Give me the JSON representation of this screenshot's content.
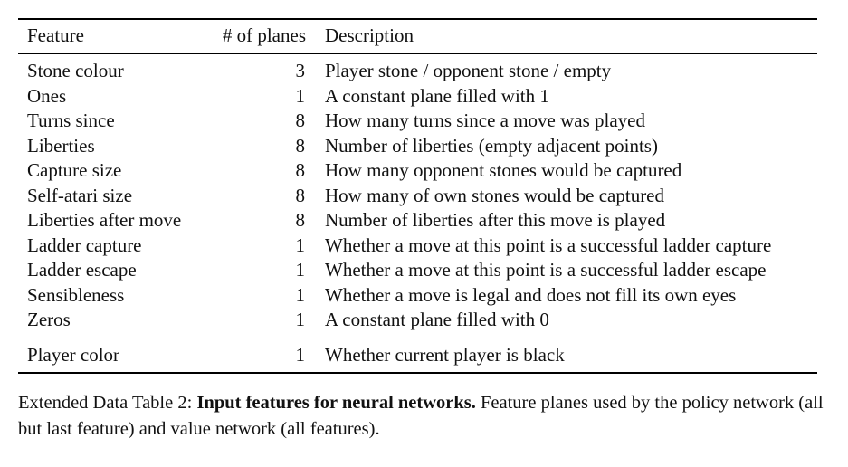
{
  "table": {
    "headers": {
      "feature": "Feature",
      "planes": "# of planes",
      "description": "Description"
    },
    "rows": [
      {
        "feature": "Stone colour",
        "planes": "3",
        "description": "Player stone / opponent stone / empty"
      },
      {
        "feature": "Ones",
        "planes": "1",
        "description": "A constant plane filled with 1"
      },
      {
        "feature": "Turns since",
        "planes": "8",
        "description": "How many turns since a move was played"
      },
      {
        "feature": "Liberties",
        "planes": "8",
        "description": "Number of liberties (empty adjacent points)"
      },
      {
        "feature": "Capture size",
        "planes": "8",
        "description": "How many opponent stones would be captured"
      },
      {
        "feature": "Self-atari size",
        "planes": "8",
        "description": "How many of own stones would be captured"
      },
      {
        "feature": "Liberties after move",
        "planes": "8",
        "description": "Number of liberties after this move is played"
      },
      {
        "feature": "Ladder capture",
        "planes": "1",
        "description": "Whether a move at this point is a successful ladder capture"
      },
      {
        "feature": "Ladder escape",
        "planes": "1",
        "description": "Whether a move at this point is a successful ladder escape"
      },
      {
        "feature": "Sensibleness",
        "planes": "1",
        "description": "Whether a move is legal and does not fill its own eyes"
      },
      {
        "feature": "Zeros",
        "planes": "1",
        "description": "A constant plane filled with 0"
      }
    ],
    "last_row": {
      "feature": "Player color",
      "planes": "1",
      "description": "Whether current player is black"
    }
  },
  "caption": {
    "prefix": "Extended Data Table 2: ",
    "bold": "Input features for neural networks.",
    "rest": " Feature planes used by the policy network (all but last feature) and value network (all features)."
  }
}
